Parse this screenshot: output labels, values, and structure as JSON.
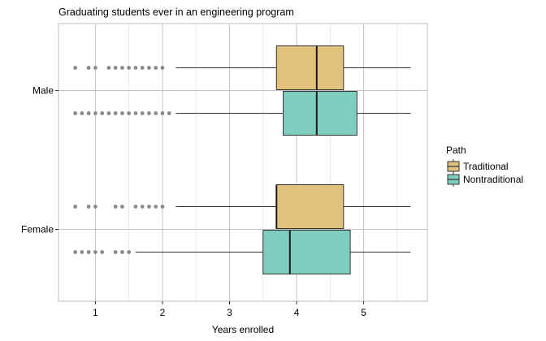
{
  "chart_data": {
    "type": "boxplot",
    "orientation": "horizontal",
    "title": "Graduating students ever in an engineering program",
    "xlabel": "Years enrolled",
    "ylabel": "",
    "xlim": [
      0.45,
      5.95
    ],
    "x_ticks": [
      1,
      2,
      3,
      4,
      5
    ],
    "x_tick_labels": [
      "1",
      "2",
      "3",
      "4",
      "5"
    ],
    "categories": [
      "Male",
      "Female"
    ],
    "grid": true,
    "legend": {
      "title": "Path",
      "position": "right",
      "entries": [
        {
          "label": "Traditional",
          "color": "#E0C27C"
        },
        {
          "label": "Nontraditional",
          "color": "#7ECDBF"
        }
      ]
    },
    "series": [
      {
        "category": "Male",
        "name": "Traditional",
        "color": "#E0C27C",
        "whisker_low": 2.2,
        "q1": 3.7,
        "median": 4.3,
        "q3": 4.7,
        "whisker_high": 5.7,
        "outliers": [
          0.7,
          0.9,
          1.0,
          1.2,
          1.3,
          1.4,
          1.5,
          1.6,
          1.7,
          1.8,
          1.9,
          2.0
        ]
      },
      {
        "category": "Male",
        "name": "Nontraditional",
        "color": "#7ECDBF",
        "whisker_low": 2.2,
        "q1": 3.8,
        "median": 4.3,
        "q3": 4.9,
        "whisker_high": 5.7,
        "outliers": [
          0.7,
          0.8,
          0.9,
          1.0,
          1.1,
          1.2,
          1.3,
          1.4,
          1.5,
          1.6,
          1.7,
          1.8,
          1.9,
          2.0,
          2.1
        ]
      },
      {
        "category": "Female",
        "name": "Traditional",
        "color": "#E0C27C",
        "whisker_low": 2.2,
        "q1": 3.7,
        "median": 3.7,
        "q3": 4.7,
        "whisker_high": 5.7,
        "outliers": [
          0.7,
          0.9,
          1.0,
          1.3,
          1.4,
          1.6,
          1.7,
          1.8,
          1.9,
          2.0
        ]
      },
      {
        "category": "Female",
        "name": "Nontraditional",
        "color": "#7ECDBF",
        "whisker_low": 1.6,
        "q1": 3.5,
        "median": 3.9,
        "q3": 4.8,
        "whisker_high": 5.7,
        "outliers": [
          0.7,
          0.8,
          0.9,
          1.0,
          1.1,
          1.3,
          1.4,
          1.5
        ]
      }
    ]
  }
}
